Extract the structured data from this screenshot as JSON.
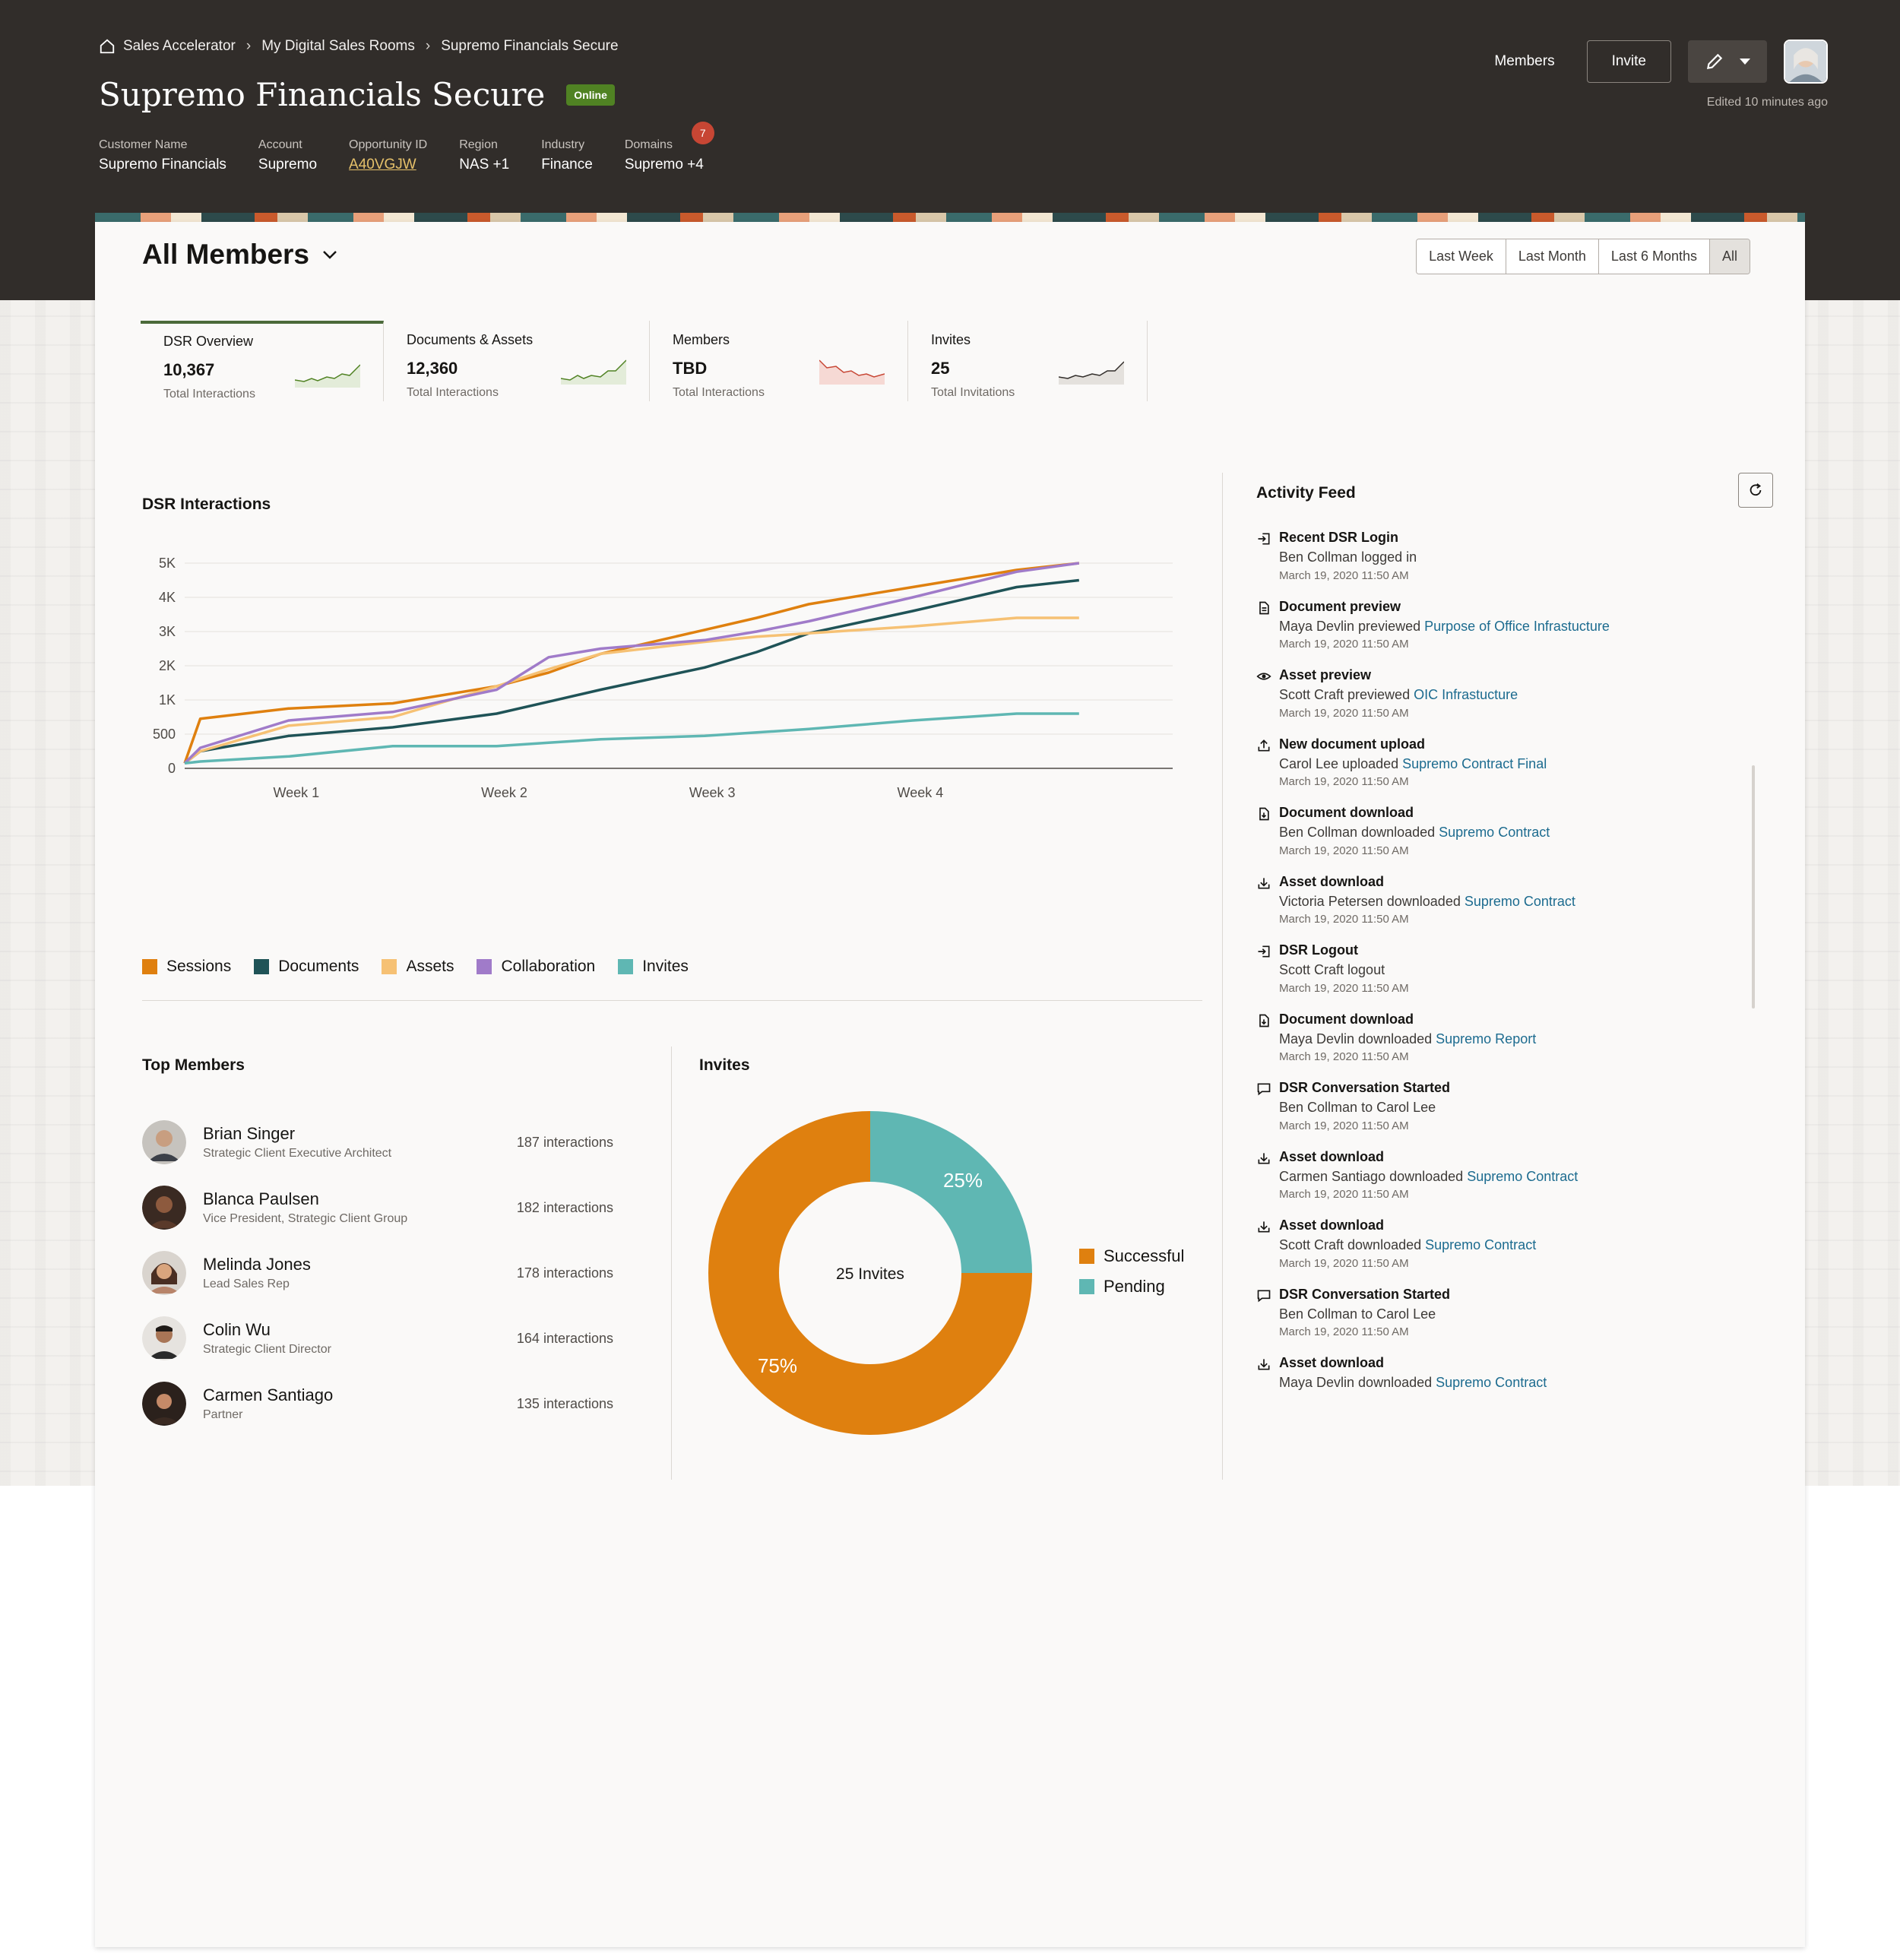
{
  "breadcrumb": [
    "Sales Accelerator",
    "My Digital Sales Rooms",
    "Supremo Financials Secure"
  ],
  "title": "Supremo Financials Secure",
  "status": "Online",
  "meta": [
    {
      "label": "Customer Name",
      "value": "Supremo Financials"
    },
    {
      "label": "Account",
      "value": "Supremo"
    },
    {
      "label": "Opportunity ID",
      "value": "A40VGJW"
    },
    {
      "label": "Region",
      "value": "NAS +1"
    },
    {
      "label": "Industry",
      "value": "Finance"
    },
    {
      "label": "Domains",
      "value": "Supremo +4",
      "badge": "7"
    }
  ],
  "actions": {
    "members": "Members",
    "invite": "Invite",
    "edited": "Edited 10 minutes ago"
  },
  "filter": {
    "title": "All Members",
    "ranges": [
      "Last Week",
      "Last Month",
      "Last 6 Months",
      "All"
    ]
  },
  "kpis": [
    {
      "label": "DSR Overview",
      "value": "10,367",
      "sub": "Total Interactions"
    },
    {
      "label": "Documents & Assets",
      "value": "12,360",
      "sub": "Total Interactions"
    },
    {
      "label": "Members",
      "value": "TBD",
      "sub": "Total Interactions"
    },
    {
      "label": "Invites",
      "value": "25",
      "sub": "Total Invitations"
    }
  ],
  "sections": {
    "interactions": "DSR Interactions",
    "top_members": "Top Members",
    "invites": "Invites",
    "feed": "Activity Feed"
  },
  "chart_data": [
    {
      "type": "line",
      "categories": [
        "Week 1",
        "Week 2",
        "Week 3",
        "Week 4"
      ],
      "x": [
        0,
        0.15,
        1.0,
        2.0,
        3.0,
        3.5,
        4.0,
        5.0,
        5.5,
        6.0,
        7.0,
        8.0,
        8.6
      ],
      "yticks": [
        "0",
        "500",
        "1K",
        "2K",
        "3K",
        "4K",
        "5K"
      ],
      "grid": true,
      "legend": "bottom-left",
      "series": [
        {
          "name": "Sessions",
          "color": "#df800f",
          "values": [
            0.15,
            1.45,
            1.75,
            1.9,
            2.4,
            2.8,
            3.35,
            4.05,
            4.4,
            4.8,
            5.3,
            5.8,
            6.0
          ]
        },
        {
          "name": "Documents",
          "color": "#1f5357",
          "values": [
            0.15,
            0.5,
            0.95,
            1.2,
            1.6,
            1.95,
            2.3,
            2.95,
            3.4,
            3.95,
            4.6,
            5.3,
            5.5
          ]
        },
        {
          "name": "Assets",
          "color": "#f6c174",
          "values": [
            0.15,
            0.5,
            1.25,
            1.5,
            2.4,
            2.9,
            3.35,
            3.7,
            3.85,
            3.95,
            4.15,
            4.4,
            4.4
          ]
        },
        {
          "name": "Collaboration",
          "color": "#a07bc9",
          "values": [
            0.15,
            0.6,
            1.4,
            1.65,
            2.3,
            3.25,
            3.5,
            3.75,
            4.0,
            4.3,
            5.0,
            5.75,
            6.0
          ]
        },
        {
          "name": "Invites",
          "color": "#5fb7b3",
          "values": [
            0.15,
            0.2,
            0.35,
            0.65,
            0.65,
            0.75,
            0.85,
            0.95,
            1.05,
            1.15,
            1.4,
            1.6,
            1.6
          ]
        }
      ]
    },
    {
      "type": "pie",
      "center_label": "25 Invites",
      "legend": "right",
      "slices": [
        {
          "name": "Successful",
          "value": 75,
          "label": "75%",
          "color": "#df800f"
        },
        {
          "name": "Pending",
          "value": 25,
          "label": "25%",
          "color": "#5fb7b3"
        }
      ]
    }
  ],
  "members": [
    {
      "name": "Brian Singer",
      "role": "Strategic Client Executive Architect",
      "count": "187 interactions"
    },
    {
      "name": "Blanca Paulsen",
      "role": "Vice President, Strategic Client Group",
      "count": "182 interactions"
    },
    {
      "name": "Melinda Jones",
      "role": "Lead Sales Rep",
      "count": "178  interactions"
    },
    {
      "name": "Colin Wu",
      "role": "Strategic Client Director",
      "count": "164 interactions"
    },
    {
      "name": "Carmen Santiago",
      "role": "Partner",
      "count": "135 interactions"
    }
  ],
  "feed": [
    {
      "icon": "login-icon",
      "head": "Recent DSR Login",
      "who": "Ben Collman",
      "verb": " logged in",
      "link": "",
      "time": "March 19, 2020  11:50 AM"
    },
    {
      "icon": "document-icon",
      "head": "Document preview",
      "who": "Maya Devlin",
      "verb": " previewed ",
      "link": "Purpose of Office Infrastucture",
      "time": "March 19, 2020  11:50 AM"
    },
    {
      "icon": "eye-icon",
      "head": "Asset preview",
      "who": "Scott Craft",
      "verb": " previewed ",
      "link": "OIC Infrastucture",
      "time": "March 19, 2020  11:50 AM"
    },
    {
      "icon": "upload-icon",
      "head": "New document upload",
      "who": "Carol Lee",
      "verb": " uploaded ",
      "link": "Supremo Contract Final",
      "time": "March 19, 2020  11:50 AM"
    },
    {
      "icon": "document-download-icon",
      "head": "Document download",
      "who": "Ben Collman",
      "verb": " downloaded ",
      "link": "Supremo Contract",
      "time": "March 19, 2020  11:50 AM"
    },
    {
      "icon": "download-icon",
      "head": "Asset download",
      "who": "Victoria Petersen",
      "verb": " downloaded ",
      "link": "Supremo Contract",
      "time": "March 19, 2020  11:50 AM"
    },
    {
      "icon": "logout-icon",
      "head": "DSR Logout",
      "who": "Scott Craft",
      "verb": " logout",
      "link": "",
      "time": "March 19, 2020  11:50 AM"
    },
    {
      "icon": "document-download-icon",
      "head": "Document download",
      "who": "Maya Devlin",
      "verb": " downloaded ",
      "link": "Supremo Report",
      "time": "March 19, 2020  11:50 AM"
    },
    {
      "icon": "chat-icon",
      "head": "DSR Conversation Started",
      "who": "Ben Collman",
      "verb": " to Carol Lee",
      "link": "",
      "time": "March 19, 2020  11:50 AM"
    },
    {
      "icon": "download-icon",
      "head": "Asset download",
      "who": "Carmen Santiago",
      "verb": " downloaded ",
      "link": "Supremo Contract",
      "time": "March 19, 2020  11:50 AM"
    },
    {
      "icon": "download-icon",
      "head": "Asset download",
      "who": "Scott Craft",
      "verb": " downloaded ",
      "link": "Supremo Contract",
      "time": "March 19, 2020  11:50 AM"
    },
    {
      "icon": "chat-icon",
      "head": "DSR Conversation Started",
      "who": "Ben Collman",
      "verb": " to Carol Lee",
      "link": "",
      "time": "March 19, 2020  11:50 AM"
    },
    {
      "icon": "download-icon",
      "head": "Asset download",
      "who": "Maya Devlin",
      "verb": " downloaded ",
      "link": "Supremo Contract",
      "time": ""
    }
  ]
}
